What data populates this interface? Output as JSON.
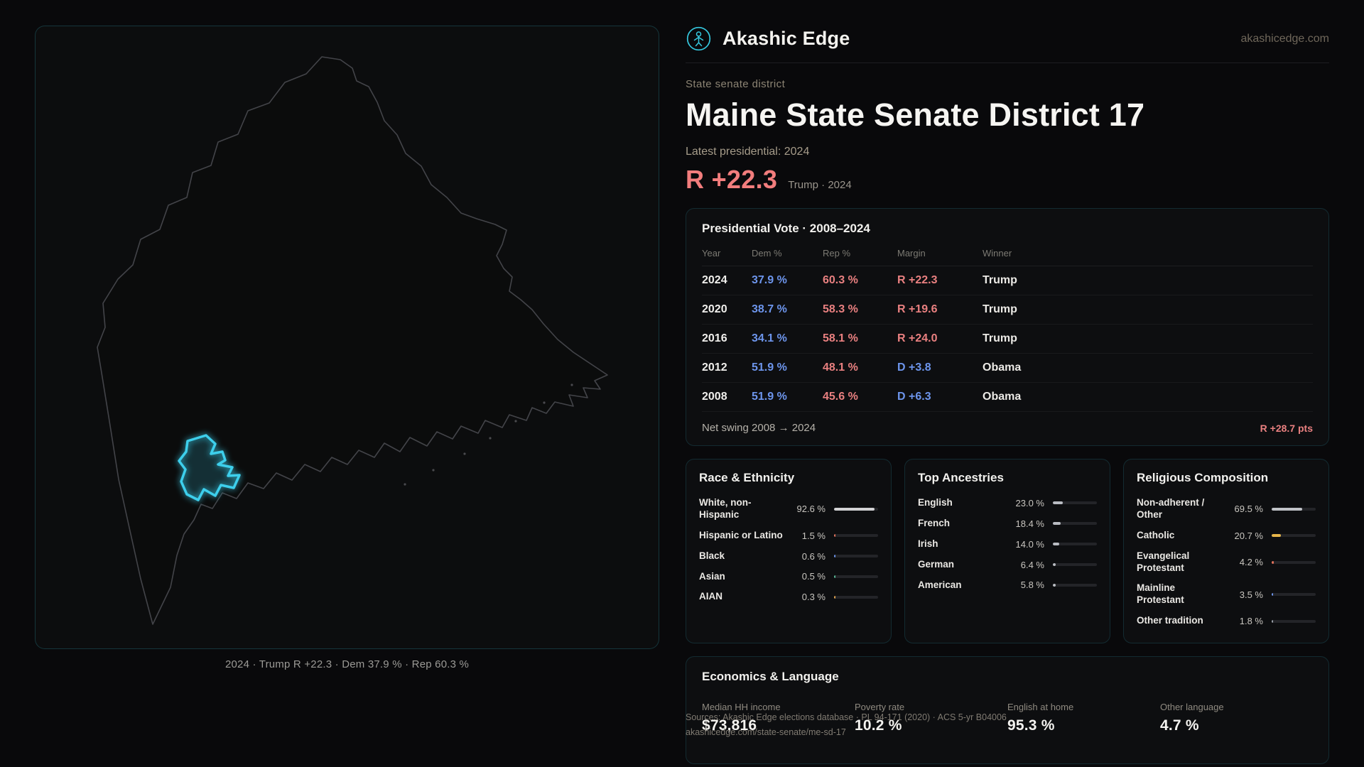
{
  "colors": {
    "accent": "#38cbe6",
    "dem": "#6d95ec",
    "rep": "#e98080",
    "lean": "#f27d7d"
  },
  "brand": {
    "name": "Akashic Edge",
    "site": "akashicedge.com"
  },
  "map": {
    "caption": "2024 · Trump R +22.3 · Dem 37.9 % · Rep 60.3 %"
  },
  "page": {
    "kicker": "State senate district",
    "title": "Maine State Senate District 17",
    "latest_label": "Latest presidential: 2024",
    "lean": "R +22.3",
    "lean_note": "Trump · 2024"
  },
  "presidential": {
    "title": "Presidential Vote · 2008–2024",
    "columns": [
      "Year",
      "Dem %",
      "Rep %",
      "Margin",
      "Winner"
    ],
    "rows": [
      {
        "year": "2024",
        "dem": "37.9 %",
        "rep": "60.3 %",
        "margin": "R +22.3",
        "margin_color": "#e98080",
        "winner": "Trump"
      },
      {
        "year": "2020",
        "dem": "38.7 %",
        "rep": "58.3 %",
        "margin": "R +19.6",
        "margin_color": "#e98080",
        "winner": "Trump"
      },
      {
        "year": "2016",
        "dem": "34.1 %",
        "rep": "58.1 %",
        "margin": "R +24.0",
        "margin_color": "#e98080",
        "winner": "Trump"
      },
      {
        "year": "2012",
        "dem": "51.9 %",
        "rep": "48.1 %",
        "margin": "D +3.8",
        "margin_color": "#6d95ec",
        "winner": "Obama"
      },
      {
        "year": "2008",
        "dem": "51.9 %",
        "rep": "45.6 %",
        "margin": "D +6.3",
        "margin_color": "#6d95ec",
        "winner": "Obama"
      }
    ],
    "footer_label": "Net swing 2008 → 2024",
    "footer_value": "R +28.7 pts"
  },
  "race": {
    "title": "Race & Ethnicity",
    "rows": [
      {
        "label": "White, non-Hispanic",
        "value": "92.6 %",
        "pct": 92.6,
        "color": "#d2d2d4"
      },
      {
        "label": "Hispanic or Latino",
        "value": "1.5 %",
        "pct": 1.5,
        "color": "#e2725b"
      },
      {
        "label": "Black",
        "value": "0.6 %",
        "pct": 0.6,
        "color": "#6d95ec"
      },
      {
        "label": "Asian",
        "value": "0.5 %",
        "pct": 0.5,
        "color": "#57b894"
      },
      {
        "label": "AIAN",
        "value": "0.3 %",
        "pct": 0.3,
        "color": "#e0a34e"
      }
    ]
  },
  "ancestries": {
    "title": "Top Ancestries",
    "rows": [
      {
        "label": "English",
        "value": "23.0 %",
        "pct": 23.0,
        "color": "#b9bcc2"
      },
      {
        "label": "French",
        "value": "18.4 %",
        "pct": 18.4,
        "color": "#b9bcc2"
      },
      {
        "label": "Irish",
        "value": "14.0 %",
        "pct": 14.0,
        "color": "#b9bcc2"
      },
      {
        "label": "German",
        "value": "6.4 %",
        "pct": 6.4,
        "color": "#b9bcc2"
      },
      {
        "label": "American",
        "value": "5.8 %",
        "pct": 5.8,
        "color": "#b9bcc2"
      }
    ]
  },
  "religion": {
    "title": "Religious Composition",
    "rows": [
      {
        "label": "Non-adherent / Other",
        "value": "69.5 %",
        "pct": 69.5,
        "color": "#c0c3c8"
      },
      {
        "label": "Catholic",
        "value": "20.7 %",
        "pct": 20.7,
        "color": "#e6b54a"
      },
      {
        "label": "Evangelical Protestant",
        "value": "4.2 %",
        "pct": 4.2,
        "color": "#e2725b"
      },
      {
        "label": "Mainline Protestant",
        "value": "3.5 %",
        "pct": 3.5,
        "color": "#6d95ec"
      },
      {
        "label": "Other tradition",
        "value": "1.8 %",
        "pct": 1.8,
        "color": "#9aa0a8"
      }
    ]
  },
  "economics": {
    "title": "Economics & Language",
    "stats": [
      {
        "label": "Median HH income",
        "value": "$73,816"
      },
      {
        "label": "Poverty rate",
        "value": "10.2 %"
      },
      {
        "label": "English at home",
        "value": "95.3 %"
      },
      {
        "label": "Other language",
        "value": "4.7 %"
      }
    ]
  },
  "sources": {
    "line1": "Sources: Akashic Edge elections database · PL 94-171 (2020) · ACS 5-yr B04006",
    "line2": "akashicedge.com/state-senate/me-sd-17"
  }
}
